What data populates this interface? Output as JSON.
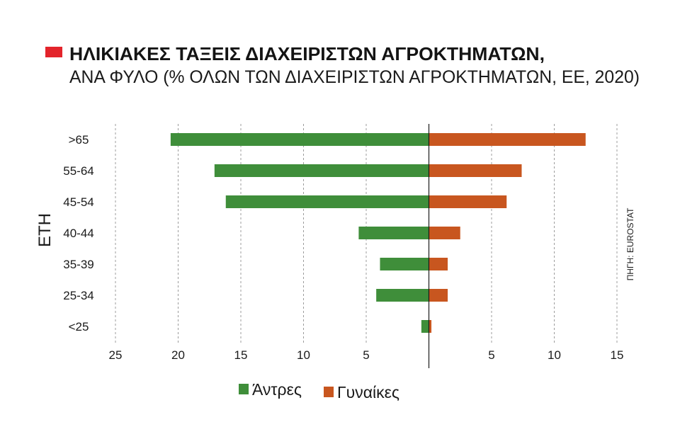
{
  "chart_data": {
    "type": "bar",
    "orientation": "horizontal",
    "diverging": true,
    "title": "ΗΛΙΚΙΑΚΕΣ ΤΑΞΕΙΣ ΔΙΑΧΕΙΡΙΣΤΩΝ ΑΓΡΟΚΤΗΜΑΤΩΝ,",
    "subtitle": "ΑΝΑ ΦΥΛΟ (% ΟΛΩΝ ΤΩΝ ΔΙΑΧΕΙΡΙΣΤΩΝ ΑΓΡΟΚΤΗΜΑΤΩΝ, ΕΕ, 2020)",
    "ylabel": "ΕΤΗ",
    "categories": [
      ">65",
      "55-64",
      "45-54",
      "40-44",
      "35-39",
      "25-34",
      "<25"
    ],
    "series": [
      {
        "name": "Άντρες",
        "color": "#3f8e3a",
        "values": [
          20.6,
          17.1,
          16.2,
          5.6,
          3.9,
          4.2,
          0.6
        ]
      },
      {
        "name": "Γυναίκες",
        "color": "#c8561f",
        "values": [
          12.5,
          7.4,
          6.2,
          2.5,
          1.5,
          1.5,
          0.2
        ]
      }
    ],
    "xlim_left": [
      0,
      25
    ],
    "xlim_right": [
      0,
      15
    ],
    "xticks_left": [
      25,
      20,
      15,
      10,
      5
    ],
    "xticks_right": [
      5,
      10,
      15
    ],
    "grid": true,
    "legend": "bottom",
    "source": "ΠΗΓΗ: EUROSTAT",
    "colors": {
      "title_marker": "#e3242b"
    }
  }
}
